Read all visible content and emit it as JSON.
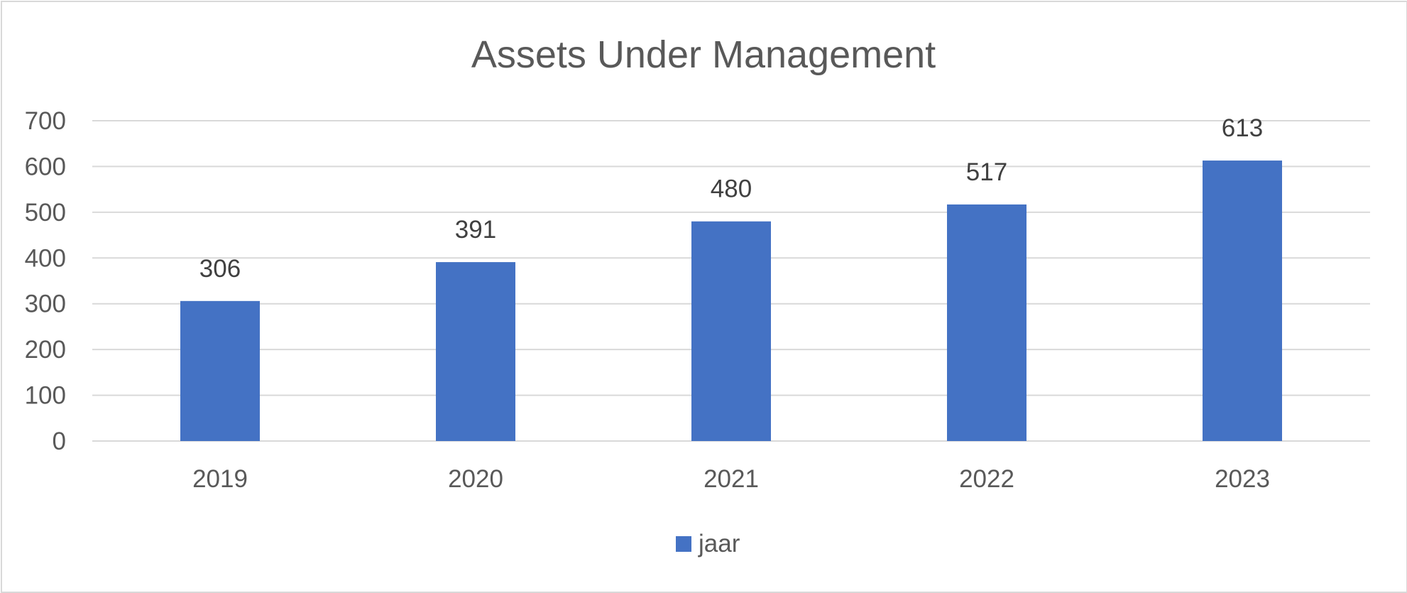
{
  "chart_data": {
    "type": "bar",
    "title": "Assets Under Management",
    "categories": [
      "2019",
      "2020",
      "2021",
      "2022",
      "2023"
    ],
    "series": [
      {
        "name": "jaar",
        "values": [
          306,
          391,
          480,
          517,
          613
        ],
        "color": "#4472C4"
      }
    ],
    "ylim": [
      0,
      700
    ],
    "yticks": [
      0,
      100,
      200,
      300,
      400,
      500,
      600,
      700
    ],
    "grid": true,
    "gridColor": "#d9d9d9",
    "data_labels": true,
    "legend": "bottom"
  }
}
